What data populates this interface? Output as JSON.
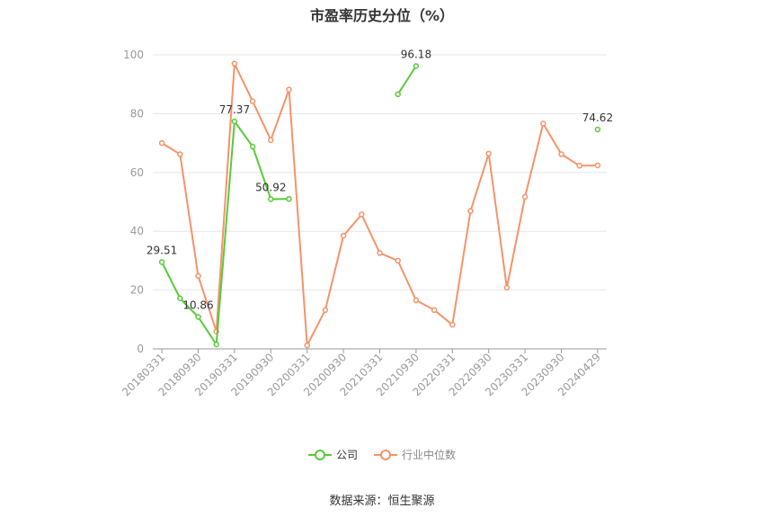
{
  "chart_data": {
    "type": "line",
    "title": "市盈率历史分位（%）",
    "x": [
      "20180331",
      "20180630",
      "20180930",
      "20181231",
      "20190331",
      "20190630",
      "20190930",
      "20191231",
      "20200331",
      "20200630",
      "20200930",
      "20201231",
      "20210331",
      "20210630",
      "20210930",
      "20211231",
      "20220331",
      "20220630",
      "20220930",
      "20221231",
      "20230331",
      "20230630",
      "20230930",
      "20231231",
      "20240429"
    ],
    "x_tick_labels": [
      "20180331",
      "20180930",
      "20190331",
      "20190930",
      "20200331",
      "20200930",
      "20210331",
      "20210930",
      "20220331",
      "20220930",
      "20230331",
      "20230930",
      "20240429"
    ],
    "ylim": [
      0,
      100
    ],
    "y_ticks": [
      0,
      20,
      40,
      60,
      80,
      100
    ],
    "grid": true,
    "legend": "bottom",
    "series": [
      {
        "name": "公司",
        "color": "#5ac93a",
        "values": [
          29.51,
          17.2,
          10.86,
          1.5,
          77.37,
          68.8,
          50.92,
          51.0,
          null,
          null,
          null,
          null,
          null,
          86.6,
          96.18,
          null,
          null,
          null,
          null,
          null,
          null,
          null,
          null,
          null,
          74.62
        ]
      },
      {
        "name": "行业中位数",
        "color": "#f4936a",
        "values": [
          70.0,
          66.2,
          24.8,
          5.9,
          97.0,
          84.2,
          71.0,
          88.2,
          1.2,
          13.2,
          38.5,
          45.7,
          32.6,
          30.0,
          16.5,
          13.2,
          8.2,
          46.9,
          66.4,
          20.8,
          51.7,
          76.6,
          66.2,
          62.3,
          62.4
        ]
      }
    ],
    "annotations": [
      {
        "series": 0,
        "index": 0,
        "text": "29.51"
      },
      {
        "series": 0,
        "index": 2,
        "text": "10.86"
      },
      {
        "series": 0,
        "index": 4,
        "text": "77.37"
      },
      {
        "series": 0,
        "index": 6,
        "text": "50.92"
      },
      {
        "series": 0,
        "index": 14,
        "text": "96.18"
      },
      {
        "series": 0,
        "index": 24,
        "text": "74.62"
      }
    ]
  },
  "legend": {
    "company": "公司",
    "industry": "行业中位数"
  },
  "source_text": "数据来源：恒生聚源"
}
